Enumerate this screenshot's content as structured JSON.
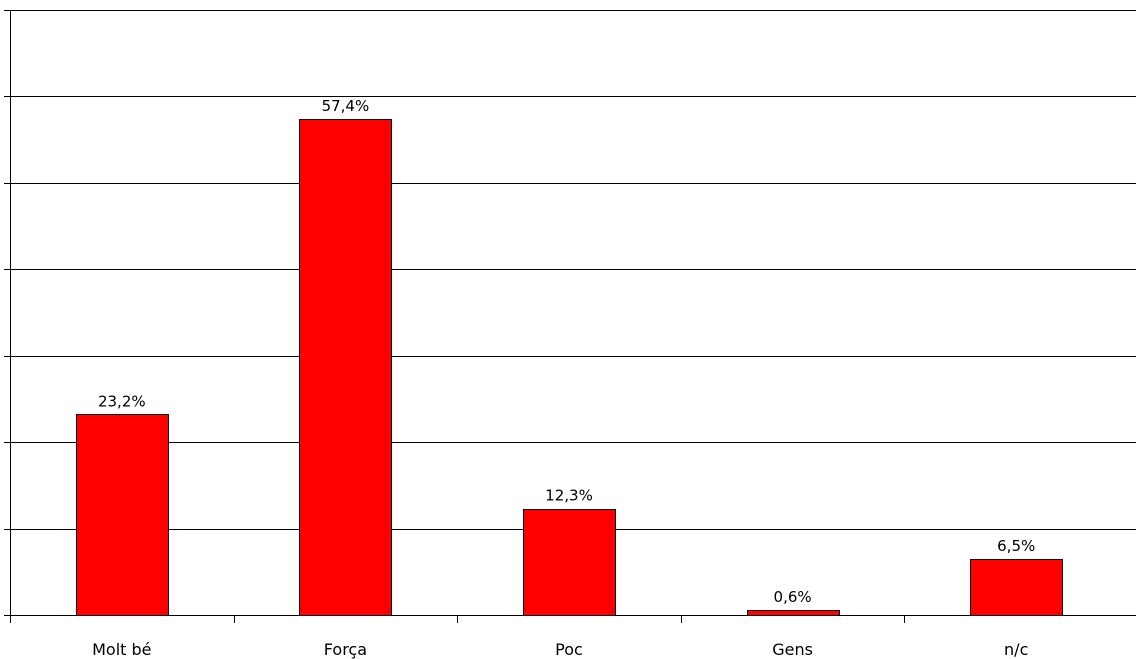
{
  "chart_data": {
    "type": "bar",
    "title": "",
    "xlabel": "",
    "ylabel": "",
    "categories": [
      "Molt bé",
      "Força",
      "Poc",
      "Gens",
      "n/c"
    ],
    "values": [
      23.2,
      57.4,
      12.3,
      0.6,
      6.5
    ],
    "value_labels": [
      "23,2%",
      "57,4%",
      "12,3%",
      "0,6%",
      "6,5%"
    ],
    "ylim": [
      0,
      70
    ],
    "ytick_step": 10,
    "grid": true,
    "bar_color": "#ff0000",
    "legend": "none"
  }
}
